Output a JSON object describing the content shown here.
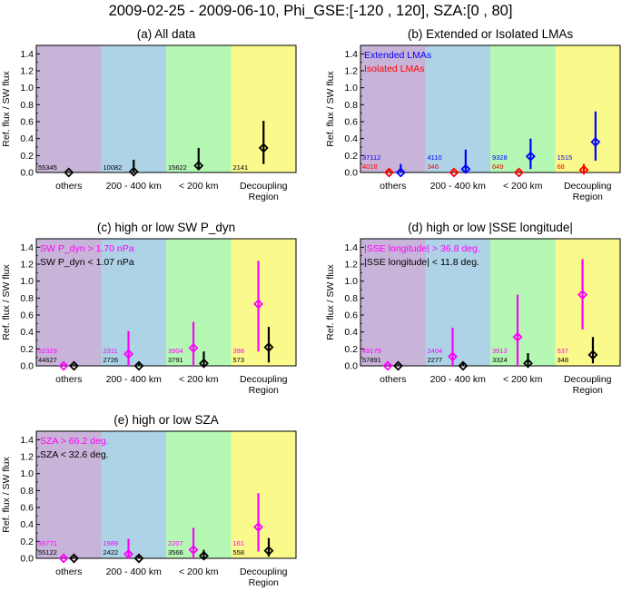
{
  "figure": {
    "title": "2009-02-25 - 2009-06-10, Phi_GSE:[-120 , 120], SZA:[0 , 80]"
  },
  "colors": {
    "region_bands": [
      "#c8b4d8",
      "#aed2e6",
      "#b4f8b4",
      "#fafa8c"
    ],
    "black": "#000000",
    "magenta": "#ff00ff",
    "blue": "#0000ff",
    "red": "#ff0000"
  },
  "chart_data": [
    {
      "type": "scatter",
      "panel": "a",
      "title": "(a) All data",
      "ylabel": "Ref. flux / SW flux",
      "xlabel": "",
      "ylim": [
        0,
        1.5
      ],
      "yticks": [
        "0.0",
        "0.2",
        "0.4",
        "0.6",
        "0.8",
        "1.0",
        "1.2",
        "1.4"
      ],
      "categories": [
        "others",
        "200 - 400 km",
        "< 200 km",
        "Decoupling Region"
      ],
      "category_lines": [
        [
          "others"
        ],
        [
          "200 - 400 km"
        ],
        [
          "< 200 km"
        ],
        [
          "Decoupling",
          "Region"
        ]
      ],
      "legend": [],
      "series": [
        {
          "name": "All data",
          "color": "black",
          "offset": 0.0,
          "values": [
            0.0,
            0.01,
            0.08,
            0.29
          ],
          "err_low": [
            0.0,
            0.0,
            0.04,
            0.1
          ],
          "err_high": [
            0.015,
            0.15,
            0.29,
            0.61
          ],
          "counts": [
            "55345",
            "10082",
            "15622",
            "2141"
          ]
        }
      ]
    },
    {
      "type": "scatter",
      "panel": "b",
      "title": "(b) Extended or Isolated LMAs",
      "ylabel": "Ref. flux / SW flux",
      "xlabel": "",
      "ylim": [
        0,
        1.5
      ],
      "yticks": [
        "0.0",
        "0.2",
        "0.4",
        "0.6",
        "0.8",
        "1.0",
        "1.2",
        "1.4"
      ],
      "categories": [
        "others",
        "200 - 400 km",
        "< 200 km",
        "Decoupling Region"
      ],
      "category_lines": [
        [
          "others"
        ],
        [
          "200 - 400 km"
        ],
        [
          "< 200 km"
        ],
        [
          "Decoupling",
          "Region"
        ]
      ],
      "legend": [
        {
          "text": "Extended LMAs",
          "color": "blue"
        },
        {
          "text": "Isolated LMAs",
          "color": "red"
        }
      ],
      "series": [
        {
          "name": "Extended LMAs",
          "color": "blue",
          "offset": 0.12,
          "values": [
            0.0,
            0.04,
            0.19,
            0.36
          ],
          "err_low": [
            0.0,
            0.0,
            0.04,
            0.14
          ],
          "err_high": [
            0.1,
            0.27,
            0.4,
            0.72
          ],
          "counts": [
            "37112",
            "4110",
            "9328",
            "1515"
          ]
        },
        {
          "name": "Isolated LMAs",
          "color": "red",
          "offset": -0.06,
          "values": [
            0.0,
            0.0,
            0.0,
            0.03
          ],
          "err_low": [
            0.0,
            0.0,
            0.0,
            0.0
          ],
          "err_high": [
            0.03,
            0.02,
            0.02,
            0.1
          ],
          "counts": [
            "4018",
            "346",
            "649",
            "68"
          ]
        }
      ]
    },
    {
      "type": "scatter",
      "panel": "c",
      "title": "(c) high or low SW P_dyn",
      "ylabel": "Ref. flux / SW flux",
      "xlabel": "",
      "ylim": [
        0,
        1.5
      ],
      "yticks": [
        "0.0",
        "0.2",
        "0.4",
        "0.6",
        "0.8",
        "1.0",
        "1.2",
        "1.4"
      ],
      "categories": [
        "others",
        "200 - 400 km",
        "< 200 km",
        "Decoupling Region"
      ],
      "category_lines": [
        [
          "others"
        ],
        [
          "200 - 400 km"
        ],
        [
          "< 200 km"
        ],
        [
          "Decoupling",
          "Region"
        ]
      ],
      "legend": [
        {
          "text": "SW P_dyn > 1.70 nPa",
          "color": "magenta"
        },
        {
          "text": "SW P_dyn < 1.07 nPa",
          "color": "black"
        }
      ],
      "series": [
        {
          "name": "SW P_dyn > 1.70 nPa",
          "color": "magenta",
          "offset": -0.08,
          "values": [
            0.0,
            0.14,
            0.21,
            0.73
          ],
          "err_low": [
            0.0,
            0.0,
            0.0,
            0.17
          ],
          "err_high": [
            0.02,
            0.41,
            0.52,
            1.24
          ],
          "counts": [
            "52329",
            "2311",
            "3904",
            "398"
          ]
        },
        {
          "name": "SW P_dyn < 1.07 nPa",
          "color": "black",
          "offset": 0.08,
          "values": [
            0.0,
            0.0,
            0.03,
            0.22
          ],
          "err_low": [
            0.0,
            0.0,
            0.0,
            0.04
          ],
          "err_high": [
            0.02,
            0.03,
            0.17,
            0.46
          ],
          "counts": [
            "44627",
            "2726",
            "3791",
            "573"
          ]
        }
      ]
    },
    {
      "type": "scatter",
      "panel": "d",
      "title": "(d) high or low |SSE longitude|",
      "ylabel": "Ref. flux / SW flux",
      "xlabel": "",
      "ylim": [
        0,
        1.5
      ],
      "yticks": [
        "0.0",
        "0.2",
        "0.4",
        "0.6",
        "0.8",
        "1.0",
        "1.2",
        "1.4"
      ],
      "categories": [
        "others",
        "200 - 400 km",
        "< 200 km",
        "Decoupling Region"
      ],
      "category_lines": [
        [
          "others"
        ],
        [
          "200 - 400 km"
        ],
        [
          "< 200 km"
        ],
        [
          "Decoupling",
          "Region"
        ]
      ],
      "legend": [
        {
          "text": "|SSE longitude| > 36.8 deg.",
          "color": "magenta"
        },
        {
          "text": "|SSE longitude| < 11.8 deg.",
          "color": "black"
        }
      ],
      "series": [
        {
          "name": "|SSE longitude| > 36.8 deg.",
          "color": "magenta",
          "offset": -0.08,
          "values": [
            0.0,
            0.11,
            0.34,
            0.84
          ],
          "err_low": [
            0.0,
            0.0,
            0.0,
            0.43
          ],
          "err_high": [
            0.02,
            0.45,
            0.84,
            1.26
          ],
          "counts": [
            "49179",
            "2404",
            "3913",
            "537"
          ]
        },
        {
          "name": "|SSE longitude| < 11.8 deg.",
          "color": "black",
          "offset": 0.08,
          "values": [
            0.0,
            0.0,
            0.03,
            0.13
          ],
          "err_low": [
            0.0,
            0.0,
            0.0,
            0.03
          ],
          "err_high": [
            0.02,
            0.03,
            0.15,
            0.34
          ],
          "counts": [
            "57891",
            "2277",
            "3324",
            "348"
          ]
        }
      ]
    },
    {
      "type": "scatter",
      "panel": "e",
      "title": "(e) high or low SZA",
      "ylabel": "Ref. flux / SW flux",
      "xlabel": "",
      "ylim": [
        0,
        1.5
      ],
      "yticks": [
        "0.0",
        "0.2",
        "0.4",
        "0.6",
        "0.8",
        "1.0",
        "1.2",
        "1.4"
      ],
      "categories": [
        "others",
        "200 - 400 km",
        "< 200 km",
        "Decoupling Region"
      ],
      "category_lines": [
        [
          "others"
        ],
        [
          "200 - 400 km"
        ],
        [
          "< 200 km"
        ],
        [
          "Decoupling",
          "Region"
        ]
      ],
      "legend": [
        {
          "text": "SZA > 66.2 deg.",
          "color": "magenta"
        },
        {
          "text": "SZA < 32.6 deg.",
          "color": "black"
        }
      ],
      "series": [
        {
          "name": "SZA > 66.2 deg.",
          "color": "magenta",
          "offset": -0.08,
          "values": [
            0.0,
            0.05,
            0.1,
            0.37
          ],
          "err_low": [
            0.0,
            0.0,
            0.0,
            0.08
          ],
          "err_high": [
            0.02,
            0.23,
            0.36,
            0.77
          ],
          "counts": [
            "55771",
            "1989",
            "2207",
            "161"
          ]
        },
        {
          "name": "SZA < 32.6 deg.",
          "color": "black",
          "offset": 0.08,
          "values": [
            0.0,
            0.0,
            0.03,
            0.09
          ],
          "err_low": [
            0.0,
            0.0,
            0.0,
            0.02
          ],
          "err_high": [
            0.02,
            0.03,
            0.1,
            0.24
          ],
          "counts": [
            "55122",
            "2422",
            "3566",
            "558"
          ]
        }
      ]
    }
  ]
}
